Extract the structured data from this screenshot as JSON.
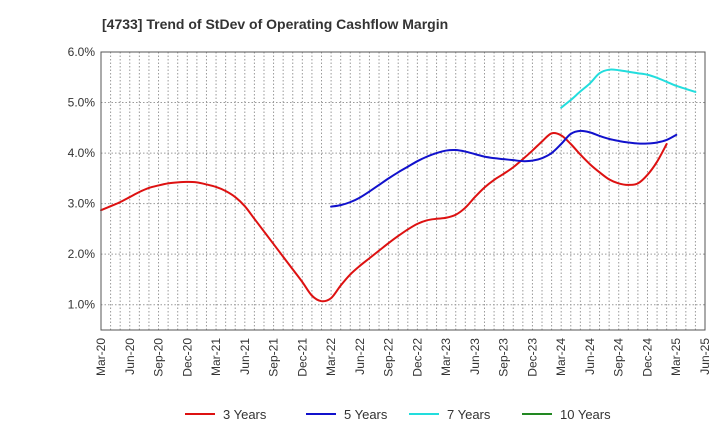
{
  "chart_data": {
    "type": "line",
    "title": "[4733]  Trend of StDev of Operating Cashflow Margin",
    "xlabel": "",
    "ylabel": "",
    "x_ticks": [
      "Mar-20",
      "Jun-20",
      "Sep-20",
      "Dec-20",
      "Mar-21",
      "Jun-21",
      "Sep-21",
      "Dec-21",
      "Mar-22",
      "Jun-22",
      "Sep-22",
      "Dec-22",
      "Mar-23",
      "Jun-23",
      "Sep-23",
      "Dec-23",
      "Mar-24",
      "Jun-24",
      "Sep-24",
      "Dec-24",
      "Mar-25",
      "Jun-25"
    ],
    "y_ticks": [
      "1.0%",
      "2.0%",
      "3.0%",
      "4.0%",
      "5.0%",
      "6.0%"
    ],
    "ylim": [
      0.5,
      6.0
    ],
    "y_unit": "%",
    "grid": true,
    "legend_position": "bottom",
    "series": [
      {
        "name": "3 Years",
        "color": "#dd1111",
        "points": [
          [
            "Mar-20",
            2.87
          ],
          [
            "Apr-20",
            2.95
          ],
          [
            "May-20",
            3.03
          ],
          [
            "Jun-20",
            3.13
          ],
          [
            "Jul-20",
            3.23
          ],
          [
            "Aug-20",
            3.31
          ],
          [
            "Sep-20",
            3.36
          ],
          [
            "Oct-20",
            3.4
          ],
          [
            "Nov-20",
            3.42
          ],
          [
            "Dec-20",
            3.43
          ],
          [
            "Jan-21",
            3.42
          ],
          [
            "Feb-21",
            3.38
          ],
          [
            "Mar-21",
            3.33
          ],
          [
            "Apr-21",
            3.25
          ],
          [
            "May-21",
            3.13
          ],
          [
            "Jun-21",
            2.95
          ],
          [
            "Jul-21",
            2.7
          ],
          [
            "Aug-21",
            2.45
          ],
          [
            "Sep-21",
            2.2
          ],
          [
            "Oct-21",
            1.95
          ],
          [
            "Nov-21",
            1.7
          ],
          [
            "Dec-21",
            1.45
          ],
          [
            "Jan-22",
            1.18
          ],
          [
            "Feb-22",
            1.07
          ],
          [
            "Mar-22",
            1.13
          ],
          [
            "Apr-22",
            1.38
          ],
          [
            "May-22",
            1.6
          ],
          [
            "Jun-22",
            1.77
          ],
          [
            "Jul-22",
            1.92
          ],
          [
            "Aug-22",
            2.07
          ],
          [
            "Sep-22",
            2.22
          ],
          [
            "Oct-22",
            2.36
          ],
          [
            "Nov-22",
            2.49
          ],
          [
            "Dec-22",
            2.6
          ],
          [
            "Jan-23",
            2.67
          ],
          [
            "Feb-23",
            2.7
          ],
          [
            "Mar-23",
            2.72
          ],
          [
            "Apr-23",
            2.78
          ],
          [
            "May-23",
            2.92
          ],
          [
            "Jun-23",
            3.13
          ],
          [
            "Jul-23",
            3.32
          ],
          [
            "Aug-23",
            3.47
          ],
          [
            "Sep-23",
            3.59
          ],
          [
            "Oct-23",
            3.72
          ],
          [
            "Nov-23",
            3.88
          ],
          [
            "Dec-23",
            4.05
          ],
          [
            "Jan-24",
            4.23
          ],
          [
            "Feb-24",
            4.39
          ],
          [
            "Mar-24",
            4.35
          ],
          [
            "Apr-24",
            4.18
          ],
          [
            "May-24",
            3.97
          ],
          [
            "Jun-24",
            3.78
          ],
          [
            "Jul-24",
            3.62
          ],
          [
            "Aug-24",
            3.48
          ],
          [
            "Sep-24",
            3.4
          ],
          [
            "Oct-24",
            3.37
          ],
          [
            "Nov-24",
            3.4
          ],
          [
            "Dec-24",
            3.57
          ],
          [
            "Jan-25",
            3.83
          ],
          [
            "Feb-25",
            4.18
          ]
        ]
      },
      {
        "name": "5 Years",
        "color": "#1111cc",
        "points": [
          [
            "Mar-22",
            2.94
          ],
          [
            "Apr-22",
            2.97
          ],
          [
            "May-22",
            3.03
          ],
          [
            "Jun-22",
            3.12
          ],
          [
            "Jul-22",
            3.24
          ],
          [
            "Aug-22",
            3.37
          ],
          [
            "Sep-22",
            3.5
          ],
          [
            "Oct-22",
            3.62
          ],
          [
            "Nov-22",
            3.73
          ],
          [
            "Dec-22",
            3.84
          ],
          [
            "Jan-23",
            3.93
          ],
          [
            "Feb-23",
            4.0
          ],
          [
            "Mar-23",
            4.05
          ],
          [
            "Apr-23",
            4.06
          ],
          [
            "May-23",
            4.03
          ],
          [
            "Jun-23",
            3.98
          ],
          [
            "Jul-23",
            3.93
          ],
          [
            "Aug-23",
            3.9
          ],
          [
            "Sep-23",
            3.88
          ],
          [
            "Oct-23",
            3.86
          ],
          [
            "Nov-23",
            3.84
          ],
          [
            "Dec-23",
            3.85
          ],
          [
            "Jan-24",
            3.9
          ],
          [
            "Feb-24",
            4.0
          ],
          [
            "Mar-24",
            4.18
          ],
          [
            "Apr-24",
            4.38
          ],
          [
            "May-24",
            4.44
          ],
          [
            "Jun-24",
            4.41
          ],
          [
            "Jul-24",
            4.34
          ],
          [
            "Aug-24",
            4.28
          ],
          [
            "Sep-24",
            4.24
          ],
          [
            "Oct-24",
            4.21
          ],
          [
            "Nov-24",
            4.19
          ],
          [
            "Dec-24",
            4.19
          ],
          [
            "Jan-25",
            4.21
          ],
          [
            "Feb-25",
            4.26
          ],
          [
            "Mar-25",
            4.36
          ]
        ]
      },
      {
        "name": "7 Years",
        "color": "#22dddd",
        "points": [
          [
            "Mar-24",
            4.9
          ],
          [
            "Apr-24",
            5.05
          ],
          [
            "May-24",
            5.22
          ],
          [
            "Jun-24",
            5.38
          ],
          [
            "Jul-24",
            5.58
          ],
          [
            "Aug-24",
            5.65
          ],
          [
            "Sep-24",
            5.64
          ],
          [
            "Oct-24",
            5.61
          ],
          [
            "Nov-24",
            5.58
          ],
          [
            "Dec-24",
            5.55
          ],
          [
            "Jan-25",
            5.49
          ],
          [
            "Feb-25",
            5.41
          ],
          [
            "Mar-25",
            5.33
          ],
          [
            "Apr-25",
            5.27
          ],
          [
            "May-25",
            5.21
          ]
        ]
      },
      {
        "name": "10 Years",
        "color": "#228822",
        "points": []
      }
    ]
  }
}
